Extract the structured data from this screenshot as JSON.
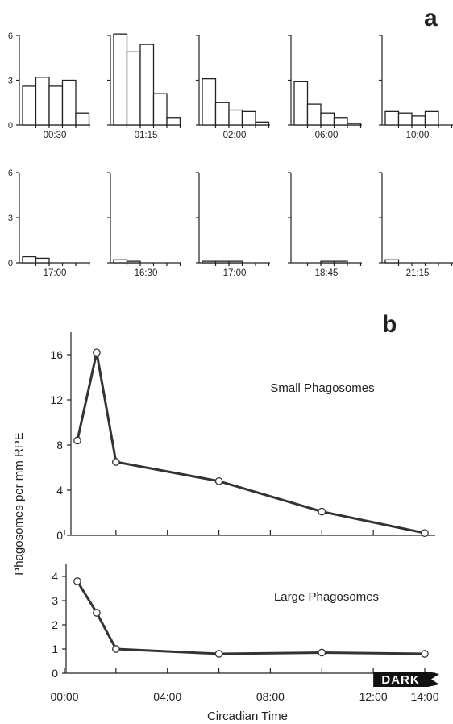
{
  "panels": {
    "a": "a",
    "b": "b"
  },
  "chart_data": [
    {
      "panel": "a",
      "type": "bar",
      "ylim": [
        0,
        6
      ],
      "yticks": [
        "0",
        "3",
        "6"
      ],
      "bins_per_histogram": 5,
      "histograms": [
        {
          "label": "00:30",
          "values": [
            2.6,
            3.2,
            2.6,
            3.0,
            0.8
          ]
        },
        {
          "label": "01:15",
          "values": [
            6.1,
            4.9,
            5.4,
            2.1,
            0.5
          ]
        },
        {
          "label": "02:00",
          "values": [
            3.1,
            1.5,
            1.0,
            0.9,
            0.2
          ]
        },
        {
          "label": "06:00",
          "values": [
            2.9,
            1.4,
            0.8,
            0.5,
            0.1
          ]
        },
        {
          "label": "10:00",
          "values": [
            0.9,
            0.8,
            0.6,
            0.9,
            0.0
          ]
        },
        {
          "label": "17:00",
          "values": [
            0.4,
            0.3,
            0.0,
            0.0,
            0.0
          ]
        },
        {
          "label": "16:30",
          "values": [
            0.2,
            0.1,
            0.0,
            0.0,
            0.0
          ]
        },
        {
          "label": "17:00",
          "values": [
            0.1,
            0.1,
            0.1,
            0.0,
            0.0
          ]
        },
        {
          "label": "18:45",
          "values": [
            0.0,
            0.0,
            0.1,
            0.1,
            0.0
          ]
        },
        {
          "label": "21:15",
          "values": [
            0.2,
            0.0,
            0.0,
            0.0,
            0.0
          ]
        }
      ]
    },
    {
      "panel": "b",
      "type": "line",
      "xlabel": "Circadian Time",
      "ylabel": "Phagosomes per mm RPE",
      "x_ticks": [
        "00:00",
        "04:00",
        "08:00",
        "12:00",
        "14:00"
      ],
      "x_tick_hours": [
        0,
        4,
        8,
        12,
        14
      ],
      "xlim_hours": [
        0,
        14
      ],
      "dark_label": "DARK",
      "dark_start_hours": 12,
      "subplots": [
        {
          "label": "Small Phagosomes",
          "ylim": [
            0,
            18
          ],
          "yticks": [
            "0",
            "4",
            "8",
            "12",
            "16"
          ],
          "x_hours": [
            0.5,
            1.25,
            2,
            6,
            10,
            14
          ],
          "y": [
            8.4,
            16.2,
            6.5,
            4.8,
            2.1,
            0.2
          ]
        },
        {
          "label": "Large Phagosomes",
          "ylim": [
            0,
            4.5
          ],
          "yticks": [
            "0",
            "1",
            "2",
            "3",
            "4"
          ],
          "x_hours": [
            0.5,
            1.25,
            2,
            6,
            10,
            14
          ],
          "y": [
            3.8,
            2.5,
            1.0,
            0.8,
            0.85,
            0.8
          ]
        }
      ]
    }
  ]
}
